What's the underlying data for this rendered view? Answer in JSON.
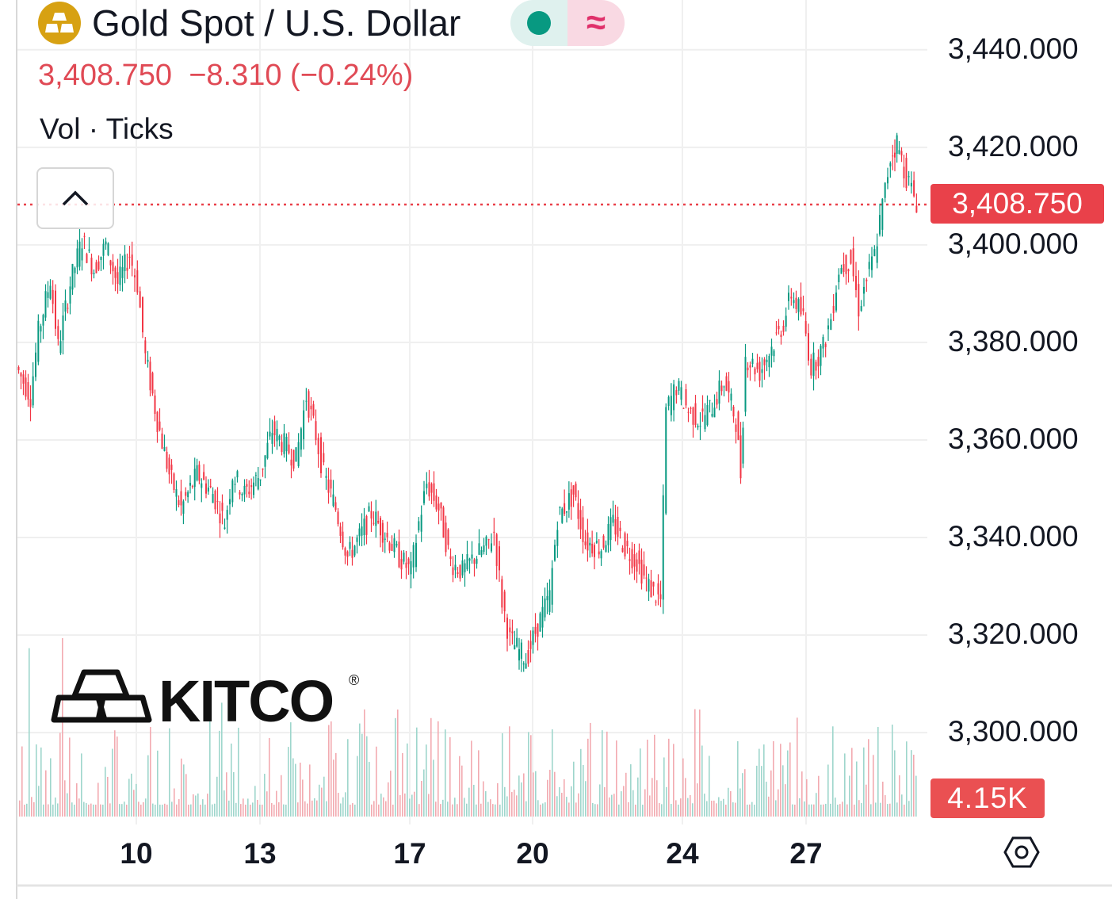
{
  "header": {
    "title": "Gold Spot / U.S. Dollar",
    "price": "3,408.750",
    "change": "−8.310",
    "change_pct": "(−0.24%)",
    "indicator": "Vol · Ticks",
    "pill_icon": "approx-icon",
    "pill_symbol": "≈"
  },
  "logo": {
    "text": "KITCO",
    "mark": "®"
  },
  "colors": {
    "up": "#089981",
    "down": "#f23645",
    "price_line": "#e9414a",
    "gold": "#d7a112"
  },
  "chart_data": {
    "type": "line",
    "title": "Gold Spot / U.S. Dollar",
    "x_unit": "bar index",
    "xlim": [
      0,
      113.6
    ],
    "ylim": [
      3282.8,
      3450.2
    ],
    "y_ticks": [
      3300,
      3320,
      3340,
      3360,
      3380,
      3400,
      3420,
      3440
    ],
    "y_tick_labels": [
      "3,300.000",
      "3,320.000",
      "3,340.000",
      "3,360.000",
      "3,380.000",
      "3,400.000",
      "3,420.000",
      "3,440.000"
    ],
    "x_ticks": [
      15,
      30.6,
      49.5,
      65,
      83.9,
      99.5
    ],
    "x_tick_labels": [
      "10",
      "13",
      "17",
      "20",
      "24",
      "27"
    ],
    "last_price": 3408.75,
    "last_price_label": "3,408.750",
    "volume_label": "4.15K",
    "grid": true,
    "x": [
      0,
      1.8,
      2.8,
      4.3,
      5.3,
      6.8,
      8.3,
      9.8,
      11.3,
      12.8,
      14.3,
      15.3,
      16.3,
      17.8,
      19.3,
      20.8,
      22.8,
      24.8,
      26.3,
      27.3,
      28.8,
      30.8,
      32.3,
      33.8,
      35.3,
      36.6,
      37.8,
      38.8,
      40.3,
      41.8,
      43.3,
      44.8,
      46.8,
      48.3,
      49.8,
      50.8,
      51.8,
      53.3,
      54.8,
      56.3,
      57.8,
      59.3,
      60.3,
      61.3,
      62.3,
      64.3,
      65.8,
      67.3,
      68.3,
      70.3,
      71.8,
      73.8,
      75.3,
      76.8,
      78.3,
      79.8,
      81.3,
      82,
      83.3,
      84.8,
      86.3,
      87.8,
      89.3,
      90.8,
      91.4,
      92,
      93.8,
      95.3,
      96.8,
      97.8,
      99.3,
      100.3,
      101.8,
      102.8,
      103.8,
      105.3,
      106.3,
      107.3,
      108.3,
      109.3,
      110.3,
      111.1,
      112.3,
      113.6
    ],
    "y": [
      3375,
      3369,
      3382,
      3393,
      3379,
      3392,
      3401,
      3395,
      3400,
      3392,
      3398,
      3392,
      3377,
      3364,
      3353,
      3346,
      3353,
      3349,
      3343,
      3353,
      3349,
      3353,
      3362,
      3359,
      3356,
      3369,
      3361,
      3353,
      3346,
      3336,
      3340,
      3345,
      3340,
      3336,
      3333,
      3343,
      3351,
      3346,
      3335,
      3333,
      3336,
      3338,
      3341,
      3327,
      3319,
      3315,
      3322,
      3328,
      3344,
      3349,
      3339,
      3338,
      3343,
      3338,
      3335,
      3330,
      3327,
      3366,
      3371,
      3366,
      3364,
      3367,
      3372,
      3364,
      3353,
      3377,
      3374,
      3379,
      3384,
      3390,
      3385,
      3375,
      3379,
      3385,
      3395,
      3397,
      3387,
      3393,
      3398,
      3408,
      3418,
      3421,
      3414,
      3408.75
    ]
  }
}
